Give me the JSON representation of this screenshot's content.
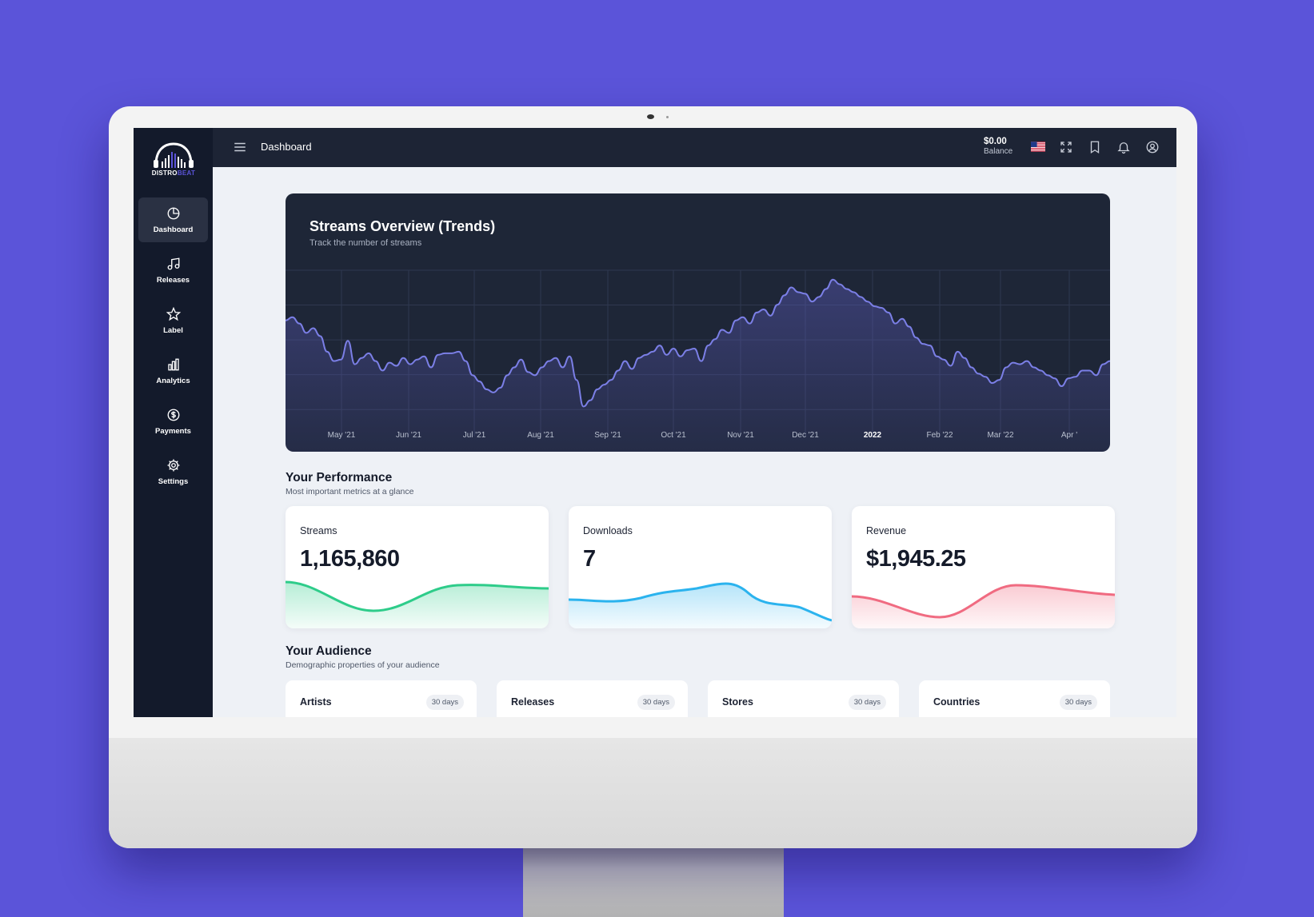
{
  "brand": {
    "name_part1": "DISTRO",
    "name_part2": "BEAT",
    "accent": "#5b54d9"
  },
  "sidebar": {
    "items": [
      {
        "label": "Dashboard",
        "icon": "pie-chart-icon",
        "active": true
      },
      {
        "label": "Releases",
        "icon": "music-note-icon"
      },
      {
        "label": "Label",
        "icon": "star-icon"
      },
      {
        "label": "Analytics",
        "icon": "bar-chart-icon"
      },
      {
        "label": "Payments",
        "icon": "dollar-circle-icon"
      },
      {
        "label": "Settings",
        "icon": "gear-icon"
      }
    ]
  },
  "topbar": {
    "title": "Dashboard",
    "balance_amount": "$0.00",
    "balance_label": "Balance",
    "icons": [
      "us-flag-icon",
      "fullscreen-icon",
      "bookmark-icon",
      "bell-icon",
      "user-circle-icon"
    ]
  },
  "streams_chart": {
    "title": "Streams Overview (Trends)",
    "subtitle": "Track the number of streams"
  },
  "chart_data": {
    "type": "area",
    "title": "Streams Overview (Trends)",
    "subtitle": "Track the number of streams",
    "x_ticks": [
      "May '21",
      "Jun '21",
      "Jul '21",
      "Aug '21",
      "Sep '21",
      "Oct '21",
      "Nov '21",
      "Dec '21",
      "2022",
      "Feb '22",
      "Mar '22",
      "Apr '"
    ],
    "grid": true,
    "line_color": "#7b7fe6",
    "values": [
      68,
      70,
      66,
      60,
      63,
      58,
      48,
      42,
      43,
      55,
      40,
      44,
      47,
      42,
      36,
      41,
      39,
      44,
      40,
      43,
      45,
      38,
      46,
      47,
      47,
      48,
      42,
      33,
      29,
      24,
      22,
      25,
      33,
      38,
      43,
      35,
      33,
      38,
      42,
      44,
      38,
      45,
      30,
      13,
      17,
      24,
      27,
      30,
      36,
      42,
      37,
      44,
      46,
      48,
      52,
      46,
      50,
      45,
      49,
      50,
      42,
      52,
      56,
      62,
      60,
      68,
      70,
      66,
      73,
      75,
      71,
      78,
      84,
      89,
      86,
      85,
      80,
      83,
      88,
      94,
      91,
      88,
      86,
      83,
      80,
      77,
      76,
      73,
      66,
      69,
      64,
      57,
      53,
      52,
      45,
      43,
      39,
      48,
      44,
      38,
      34,
      32,
      28,
      30,
      38,
      41,
      40,
      42,
      38,
      36,
      33,
      31,
      26,
      31,
      32,
      36,
      36,
      33,
      40,
      42
    ],
    "ylim": [
      0,
      100
    ]
  },
  "performance": {
    "title": "Your Performance",
    "subtitle": "Most important metrics at a glance",
    "metrics": [
      {
        "label": "Streams",
        "value": "1,165,860",
        "color": "#2ecc8a"
      },
      {
        "label": "Downloads",
        "value": "7",
        "color": "#2bb3ee"
      },
      {
        "label": "Revenue",
        "value": "$1,945.25",
        "color": "#f06b81"
      }
    ]
  },
  "audience": {
    "title": "Your Audience",
    "subtitle": "Demographic properties of your audience",
    "cards": [
      {
        "label": "Artists",
        "badge": "30 days"
      },
      {
        "label": "Releases",
        "badge": "30 days"
      },
      {
        "label": "Stores",
        "badge": "30 days"
      },
      {
        "label": "Countries",
        "badge": "30 days"
      }
    ]
  }
}
